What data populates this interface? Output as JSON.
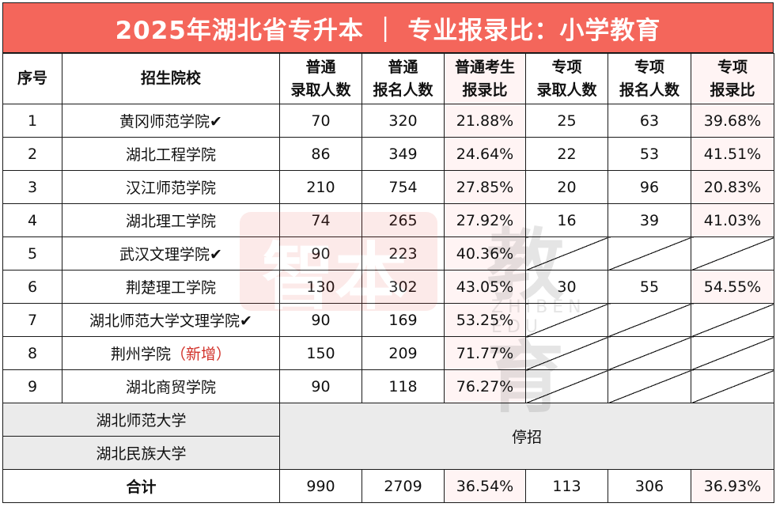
{
  "title": "2025年湖北省专升本 ｜ 专业报录比：小学教育",
  "headers": {
    "no": "序号",
    "school": "招生院校",
    "ptAdmit": [
      "普通",
      "录取人数"
    ],
    "ptApply": [
      "普通",
      "报名人数"
    ],
    "ptRatio": [
      "普通考生",
      "报录比"
    ],
    "zxAdmit": [
      "专项",
      "录取人数"
    ],
    "zxApply": [
      "专项",
      "报名人数"
    ],
    "zxRatio": [
      "专项",
      "报录比"
    ]
  },
  "rows": [
    {
      "no": "1",
      "school": "黄冈师范学院",
      "check": "✔",
      "tag": "",
      "ptAdmit": "70",
      "ptApply": "320",
      "ptRatio": "21.88%",
      "zxAdmit": "25",
      "zxApply": "63",
      "zxRatio": "39.68%"
    },
    {
      "no": "2",
      "school": "湖北工程学院",
      "check": "",
      "tag": "",
      "ptAdmit": "86",
      "ptApply": "349",
      "ptRatio": "24.64%",
      "zxAdmit": "22",
      "zxApply": "53",
      "zxRatio": "41.51%"
    },
    {
      "no": "3",
      "school": "汉江师范学院",
      "check": "",
      "tag": "",
      "ptAdmit": "210",
      "ptApply": "754",
      "ptRatio": "27.85%",
      "zxAdmit": "20",
      "zxApply": "96",
      "zxRatio": "20.83%"
    },
    {
      "no": "4",
      "school": "湖北理工学院",
      "check": "",
      "tag": "",
      "ptAdmit": "74",
      "ptApply": "265",
      "ptRatio": "27.92%",
      "zxAdmit": "16",
      "zxApply": "39",
      "zxRatio": "41.03%"
    },
    {
      "no": "5",
      "school": "武汉文理学院",
      "check": "✔",
      "tag": "",
      "ptAdmit": "90",
      "ptApply": "223",
      "ptRatio": "40.36%",
      "zxAdmit": "",
      "zxApply": "",
      "zxRatio": ""
    },
    {
      "no": "6",
      "school": "荆楚理工学院",
      "check": "",
      "tag": "",
      "ptAdmit": "130",
      "ptApply": "302",
      "ptRatio": "43.05%",
      "zxAdmit": "30",
      "zxApply": "55",
      "zxRatio": "54.55%"
    },
    {
      "no": "7",
      "school": "湖北师范大学文理学院",
      "check": "✔",
      "tag": "",
      "ptAdmit": "90",
      "ptApply": "169",
      "ptRatio": "53.25%",
      "zxAdmit": "",
      "zxApply": "",
      "zxRatio": ""
    },
    {
      "no": "8",
      "school": "荆州学院",
      "check": "",
      "tag": "（新增）",
      "ptAdmit": "150",
      "ptApply": "209",
      "ptRatio": "71.77%",
      "zxAdmit": "",
      "zxApply": "",
      "zxRatio": ""
    },
    {
      "no": "9",
      "school": "湖北商贸学院",
      "check": "",
      "tag": "",
      "ptAdmit": "90",
      "ptApply": "118",
      "ptRatio": "76.27%",
      "zxAdmit": "",
      "zxApply": "",
      "zxRatio": ""
    }
  ],
  "suspended": {
    "schools": [
      "湖北师范大学",
      "湖北民族大学"
    ],
    "label": "停招"
  },
  "total": {
    "label": "合计",
    "ptAdmit": "990",
    "ptApply": "2709",
    "ptRatio": "36.54%",
    "zxAdmit": "113",
    "zxApply": "306",
    "zxRatio": "36.93%"
  },
  "watermark": {
    "logo": "智本",
    "text": "教育",
    "sub": "ZHIBEN EDU"
  },
  "colors": {
    "titleBg": "#f4665b",
    "ratioBg": "#fff4f4",
    "suspendedBg": "#ebebeb",
    "newTag": "#d2322a"
  }
}
